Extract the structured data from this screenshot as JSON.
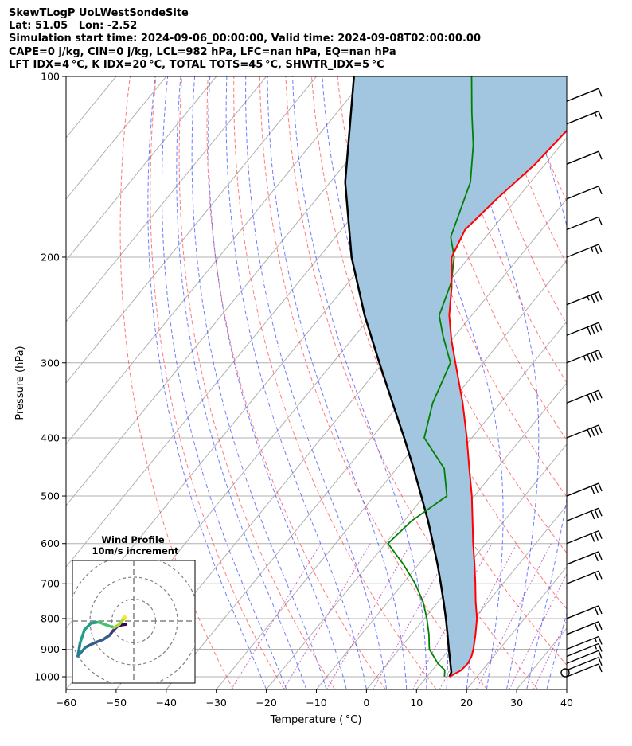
{
  "header": {
    "line1": "SkewTLogP UoLWestSondeSite",
    "line2": "Lat: 51.05   Lon: -2.52",
    "line3": "Simulation start time: 2024-09-06_00:00:00, Valid time: 2024-09-08T02:00:00.00",
    "line4": "CAPE=0 j/kg, CIN=0 j/kg, LCL=982 hPa, LFC=nan hPa, EQ=nan hPa",
    "line5": "LFT IDX=4 °C, K IDX=20 °C, TOTAL TOTS=45 °C, SHWTR_IDX=5 °C"
  },
  "chart_data": {
    "type": "line",
    "chart_kind": "skew-T log-P diagram",
    "xlabel": "Temperature ( °C)",
    "ylabel": "Pressure (hPa)",
    "xlim": [
      -60,
      40
    ],
    "ylim": [
      1050,
      100
    ],
    "y_scale": "log",
    "grid": true,
    "x_ticks": [
      -60,
      -50,
      -40,
      -30,
      -20,
      -10,
      0,
      10,
      20,
      30,
      40
    ],
    "x_tick_labels": [
      "−60",
      "−50",
      "−40",
      "−30",
      "−20",
      "−10",
      "0",
      "10",
      "20",
      "30",
      "40"
    ],
    "y_ticks": [
      1000,
      900,
      800,
      700,
      600,
      500,
      400,
      300,
      200,
      100
    ],
    "y_tick_labels": [
      "1000",
      "900",
      "800",
      "700",
      "600",
      "500",
      "400",
      "300",
      "200",
      "100"
    ],
    "series": [
      {
        "role": "temperature",
        "color": "#ff0000",
        "points": [
          [
            1000,
            14.5
          ],
          [
            975,
            15.8
          ],
          [
            950,
            16.0
          ],
          [
            925,
            15.6
          ],
          [
            900,
            14.8
          ],
          [
            850,
            12.8
          ],
          [
            800,
            10.5
          ],
          [
            750,
            7.5
          ],
          [
            700,
            4.5
          ],
          [
            650,
            1.2
          ],
          [
            600,
            -2.5
          ],
          [
            550,
            -6.3
          ],
          [
            500,
            -10.5
          ],
          [
            450,
            -15.5
          ],
          [
            400,
            -21.0
          ],
          [
            350,
            -27.5
          ],
          [
            300,
            -35.5
          ],
          [
            275,
            -40.0
          ],
          [
            250,
            -44.5
          ],
          [
            225,
            -48.5
          ],
          [
            200,
            -53.5
          ],
          [
            180,
            -55.3
          ],
          [
            160,
            -54.0
          ],
          [
            140,
            -52.0
          ],
          [
            120,
            -51.0
          ],
          [
            105,
            -51.5
          ],
          [
            100,
            -51.5
          ]
        ]
      },
      {
        "role": "dewpoint",
        "color": "#008000",
        "points": [
          [
            1000,
            13.5
          ],
          [
            975,
            12.5
          ],
          [
            950,
            10.0
          ],
          [
            900,
            6.0
          ],
          [
            850,
            3.5
          ],
          [
            800,
            0.5
          ],
          [
            750,
            -3.0
          ],
          [
            700,
            -7.5
          ],
          [
            650,
            -13.0
          ],
          [
            600,
            -19.5
          ],
          [
            550,
            -18.5
          ],
          [
            500,
            -15.5
          ],
          [
            450,
            -20.5
          ],
          [
            400,
            -29.5
          ],
          [
            350,
            -33.5
          ],
          [
            300,
            -36.5
          ],
          [
            270,
            -42.5
          ],
          [
            250,
            -46.5
          ],
          [
            220,
            -49.5
          ],
          [
            200,
            -53.0
          ],
          [
            185,
            -57.0
          ],
          [
            170,
            -59.0
          ],
          [
            150,
            -62.0
          ],
          [
            130,
            -67.5
          ],
          [
            115,
            -73.0
          ],
          [
            100,
            -79.0
          ]
        ]
      },
      {
        "role": "parcel",
        "color": "#000000",
        "points": [
          [
            1000,
            14.5
          ],
          [
            982,
            14.1
          ],
          [
            950,
            12.5
          ],
          [
            900,
            9.9
          ],
          [
            850,
            7.2
          ],
          [
            800,
            4.3
          ],
          [
            750,
            1.1
          ],
          [
            700,
            -2.4
          ],
          [
            650,
            -6.2
          ],
          [
            600,
            -10.5
          ],
          [
            550,
            -15.2
          ],
          [
            500,
            -20.6
          ],
          [
            450,
            -26.6
          ],
          [
            400,
            -33.5
          ],
          [
            350,
            -41.5
          ],
          [
            300,
            -50.7
          ],
          [
            250,
            -61.4
          ],
          [
            200,
            -73.5
          ],
          [
            150,
            -87.0
          ],
          [
            100,
            -102.5
          ]
        ]
      }
    ],
    "cape_shading_color": "#a3c6e0",
    "wind_barbs": [
      {
        "p": 1000,
        "speed_kt": 10
      },
      {
        "p": 975,
        "speed_kt": 10
      },
      {
        "p": 950,
        "speed_kt": 10
      },
      {
        "p": 925,
        "speed_kt": 15
      },
      {
        "p": 900,
        "speed_kt": 15
      },
      {
        "p": 850,
        "speed_kt": 20
      },
      {
        "p": 800,
        "speed_kt": 20
      },
      {
        "p": 700,
        "speed_kt": 20
      },
      {
        "p": 650,
        "speed_kt": 20
      },
      {
        "p": 600,
        "speed_kt": 30
      },
      {
        "p": 550,
        "speed_kt": 30
      },
      {
        "p": 500,
        "speed_kt": 30
      },
      {
        "p": 400,
        "speed_kt": 40
      },
      {
        "p": 350,
        "speed_kt": 40
      },
      {
        "p": 300,
        "speed_kt": 45
      },
      {
        "p": 270,
        "speed_kt": 40
      },
      {
        "p": 240,
        "speed_kt": 35
      },
      {
        "p": 200,
        "speed_kt": 25
      },
      {
        "p": 180,
        "speed_kt": 10
      },
      {
        "p": 160,
        "speed_kt": 10
      },
      {
        "p": 140,
        "speed_kt": 10
      },
      {
        "p": 120,
        "speed_kt": 15
      },
      {
        "p": 110,
        "speed_kt": 10
      }
    ],
    "hodograph": {
      "title": "Wind Profile",
      "subtitle": "10m/s increment",
      "rings_ms": [
        10,
        20,
        30
      ],
      "points_ms": [
        [
          -3.5,
          -1.5
        ],
        [
          -4.0,
          -1.6
        ],
        [
          -5.5,
          -1.8
        ],
        [
          -7.5,
          -2.5
        ],
        [
          -9.5,
          -4.5
        ],
        [
          -11.0,
          -6.5
        ],
        [
          -14.0,
          -8.5
        ],
        [
          -18.0,
          -10.0
        ],
        [
          -22.0,
          -12.0
        ],
        [
          -25.5,
          -16.0
        ],
        [
          -24.5,
          -10.0
        ],
        [
          -22.5,
          -4.0
        ],
        [
          -19.5,
          -1.0
        ],
        [
          -16.0,
          -0.5
        ],
        [
          -12.0,
          -2.0
        ],
        [
          -9.0,
          -3.0
        ],
        [
          -6.5,
          -1.5
        ],
        [
          -5.0,
          0.5
        ],
        [
          -3.8,
          1.5
        ],
        [
          -4.2,
          2.0
        ],
        [
          -5.0,
          1.2
        ]
      ]
    }
  }
}
